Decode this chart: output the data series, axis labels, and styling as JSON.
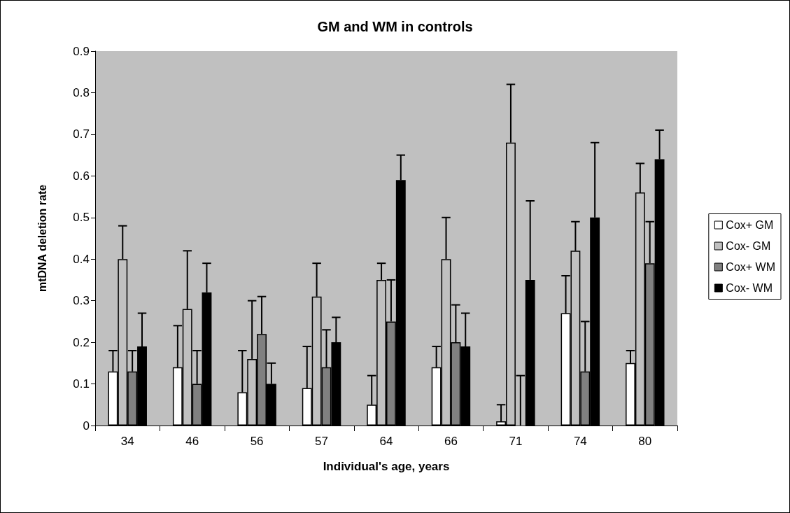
{
  "chart_data": {
    "type": "bar",
    "title": "GM and WM in controls",
    "xlabel": "Individual's age, years",
    "ylabel": "mtDNA deletion rate",
    "categories": [
      "34",
      "46",
      "56",
      "57",
      "64",
      "66",
      "71",
      "74",
      "80"
    ],
    "series": [
      {
        "name": "Cox+ GM",
        "color": "#ffffff",
        "values": [
          0.13,
          0.14,
          0.08,
          0.09,
          0.05,
          0.14,
          0.01,
          0.27,
          0.15
        ],
        "errors": [
          [
            0.13,
            0.18
          ],
          [
            0.14,
            0.24
          ],
          [
            0.08,
            0.18
          ],
          [
            0.09,
            0.19
          ],
          [
            0.05,
            0.12
          ],
          [
            0.14,
            0.19
          ],
          [
            0.01,
            0.05
          ],
          [
            0.27,
            0.36
          ],
          [
            0.15,
            0.18
          ]
        ]
      },
      {
        "name": "Cox- GM",
        "color": "#c0c0c0",
        "values": [
          0.4,
          0.28,
          0.16,
          0.31,
          0.35,
          0.4,
          0.68,
          0.42,
          0.56
        ],
        "errors": [
          [
            0.4,
            0.48
          ],
          [
            0.28,
            0.42
          ],
          [
            0.16,
            0.3
          ],
          [
            0.31,
            0.39
          ],
          [
            0.35,
            0.39
          ],
          [
            0.4,
            0.5
          ],
          [
            0.68,
            0.82
          ],
          [
            0.42,
            0.49
          ],
          [
            0.56,
            0.63
          ]
        ]
      },
      {
        "name": "Cox+ WM",
        "color": "#808080",
        "values": [
          0.13,
          0.1,
          0.22,
          0.14,
          0.25,
          0.2,
          0.0,
          0.13,
          0.39
        ],
        "errors": [
          [
            0.13,
            0.18
          ],
          [
            0.1,
            0.18
          ],
          [
            0.22,
            0.31
          ],
          [
            0.14,
            0.23
          ],
          [
            0.25,
            0.35
          ],
          [
            0.2,
            0.29
          ],
          [
            0.0,
            0.12
          ],
          [
            0.13,
            0.25
          ],
          [
            0.39,
            0.49
          ]
        ]
      },
      {
        "name": "Cox- WM",
        "color": "#000000",
        "values": [
          0.19,
          0.32,
          0.1,
          0.2,
          0.59,
          0.19,
          0.35,
          0.5,
          0.64
        ],
        "errors": [
          [
            0.19,
            0.27
          ],
          [
            0.32,
            0.39
          ],
          [
            0.1,
            0.15
          ],
          [
            0.2,
            0.26
          ],
          [
            0.59,
            0.65
          ],
          [
            0.19,
            0.27
          ],
          [
            0.35,
            0.54
          ],
          [
            0.5,
            0.68
          ],
          [
            0.64,
            0.71
          ]
        ]
      }
    ],
    "ylim": [
      0,
      0.9
    ],
    "yticks": [
      0,
      0.1,
      0.2,
      0.3,
      0.4,
      0.5,
      0.6,
      0.7,
      0.8,
      0.9
    ],
    "grid": false,
    "legend": "right"
  }
}
